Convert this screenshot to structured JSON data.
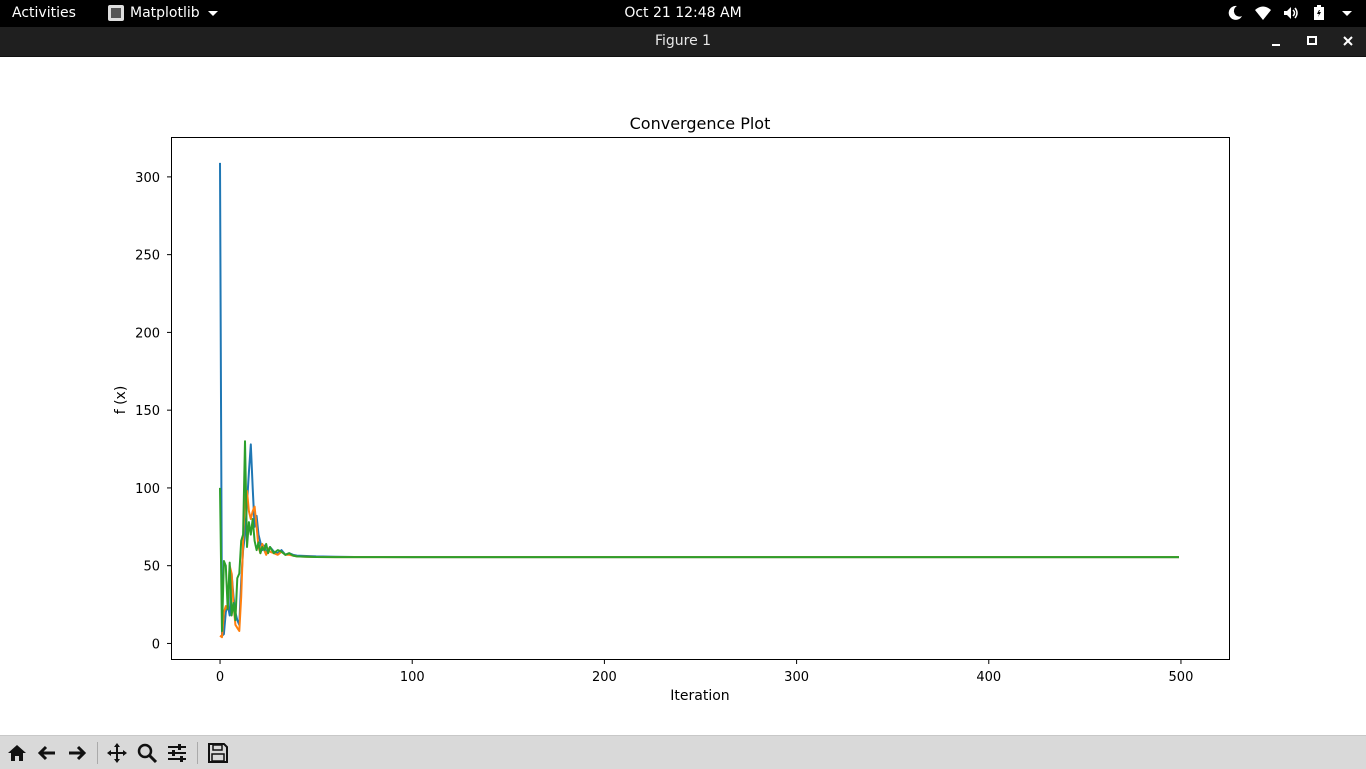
{
  "system_bar": {
    "activities_label": "Activities",
    "app_name": "Matplotlib",
    "clock": "Oct 21  12:48 AM",
    "tray_icons": [
      "night-light-icon",
      "wifi-icon",
      "volume-icon",
      "battery-icon",
      "chevron-down-icon"
    ]
  },
  "window": {
    "title": "Figure 1",
    "buttons": [
      "minimize",
      "maximize",
      "close"
    ]
  },
  "toolbar": {
    "buttons": [
      "home-icon",
      "back-icon",
      "forward-icon",
      "pan-icon",
      "zoom-icon",
      "configure-icon",
      "save-icon"
    ]
  },
  "chart_data": {
    "type": "line",
    "title": "Convergence Plot",
    "xlabel": "Iteration",
    "ylabel": "f (x)",
    "xlim": [
      -25,
      525
    ],
    "ylim": [
      -10,
      325
    ],
    "xticks": [
      0,
      100,
      200,
      300,
      400,
      500
    ],
    "yticks": [
      0,
      50,
      100,
      150,
      200,
      250,
      300
    ],
    "grid": false,
    "series": [
      {
        "color": "#1f77b4",
        "x": [
          0,
          1,
          2,
          3,
          4,
          5,
          6,
          7,
          8,
          9,
          10,
          11,
          12,
          13,
          14,
          15,
          16,
          17,
          18,
          19,
          20,
          21,
          22,
          23,
          24,
          25,
          26,
          28,
          30,
          32,
          34,
          36,
          38,
          40,
          45,
          50,
          60,
          70,
          100,
          200,
          300,
          400,
          499
        ],
        "y": [
          309,
          5,
          6,
          20,
          25,
          18,
          45,
          30,
          20,
          15,
          12,
          40,
          60,
          70,
          90,
          110,
          128,
          100,
          75,
          82,
          70,
          65,
          60,
          63,
          58,
          60,
          62,
          59,
          58,
          60,
          57,
          58,
          57,
          56.5,
          56.2,
          56,
          55.8,
          55.6,
          55.5,
          55.5,
          55.5,
          55.5,
          55.5
        ]
      },
      {
        "color": "#ff7f0e",
        "x": [
          0,
          1,
          2,
          3,
          4,
          5,
          6,
          7,
          8,
          9,
          10,
          11,
          12,
          13,
          14,
          15,
          16,
          17,
          18,
          19,
          20,
          21,
          22,
          23,
          24,
          25,
          26,
          28,
          30,
          32,
          34,
          36,
          38,
          40,
          45,
          50,
          60,
          70,
          100,
          200,
          300,
          400,
          499
        ],
        "y": [
          5,
          4,
          20,
          24,
          22,
          50,
          45,
          25,
          12,
          10,
          8,
          30,
          65,
          95,
          98,
          85,
          80,
          85,
          88,
          75,
          62,
          58,
          64,
          60,
          57,
          61,
          59,
          58,
          57,
          59,
          57,
          57,
          56.5,
          56,
          55.8,
          55.6,
          55.5,
          55.5,
          55.5,
          55.5,
          55.5,
          55.5,
          55.5
        ]
      },
      {
        "color": "#2ca02c",
        "x": [
          0,
          1,
          2,
          3,
          4,
          5,
          6,
          7,
          8,
          9,
          10,
          11,
          12,
          13,
          14,
          15,
          16,
          17,
          18,
          19,
          20,
          21,
          22,
          23,
          24,
          25,
          26,
          28,
          30,
          32,
          34,
          36,
          38,
          40,
          45,
          50,
          60,
          70,
          100,
          200,
          300,
          400,
          499
        ],
        "y": [
          100,
          8,
          53,
          50,
          22,
          52,
          18,
          26,
          15,
          42,
          45,
          66,
          70,
          130,
          62,
          78,
          70,
          80,
          66,
          60,
          65,
          58,
          62,
          60,
          64,
          58,
          62,
          58,
          60,
          59,
          57,
          58,
          56.5,
          56,
          55.8,
          55.6,
          55.5,
          55.5,
          55.5,
          55.5,
          55.5,
          55.5,
          55.5
        ]
      }
    ]
  }
}
